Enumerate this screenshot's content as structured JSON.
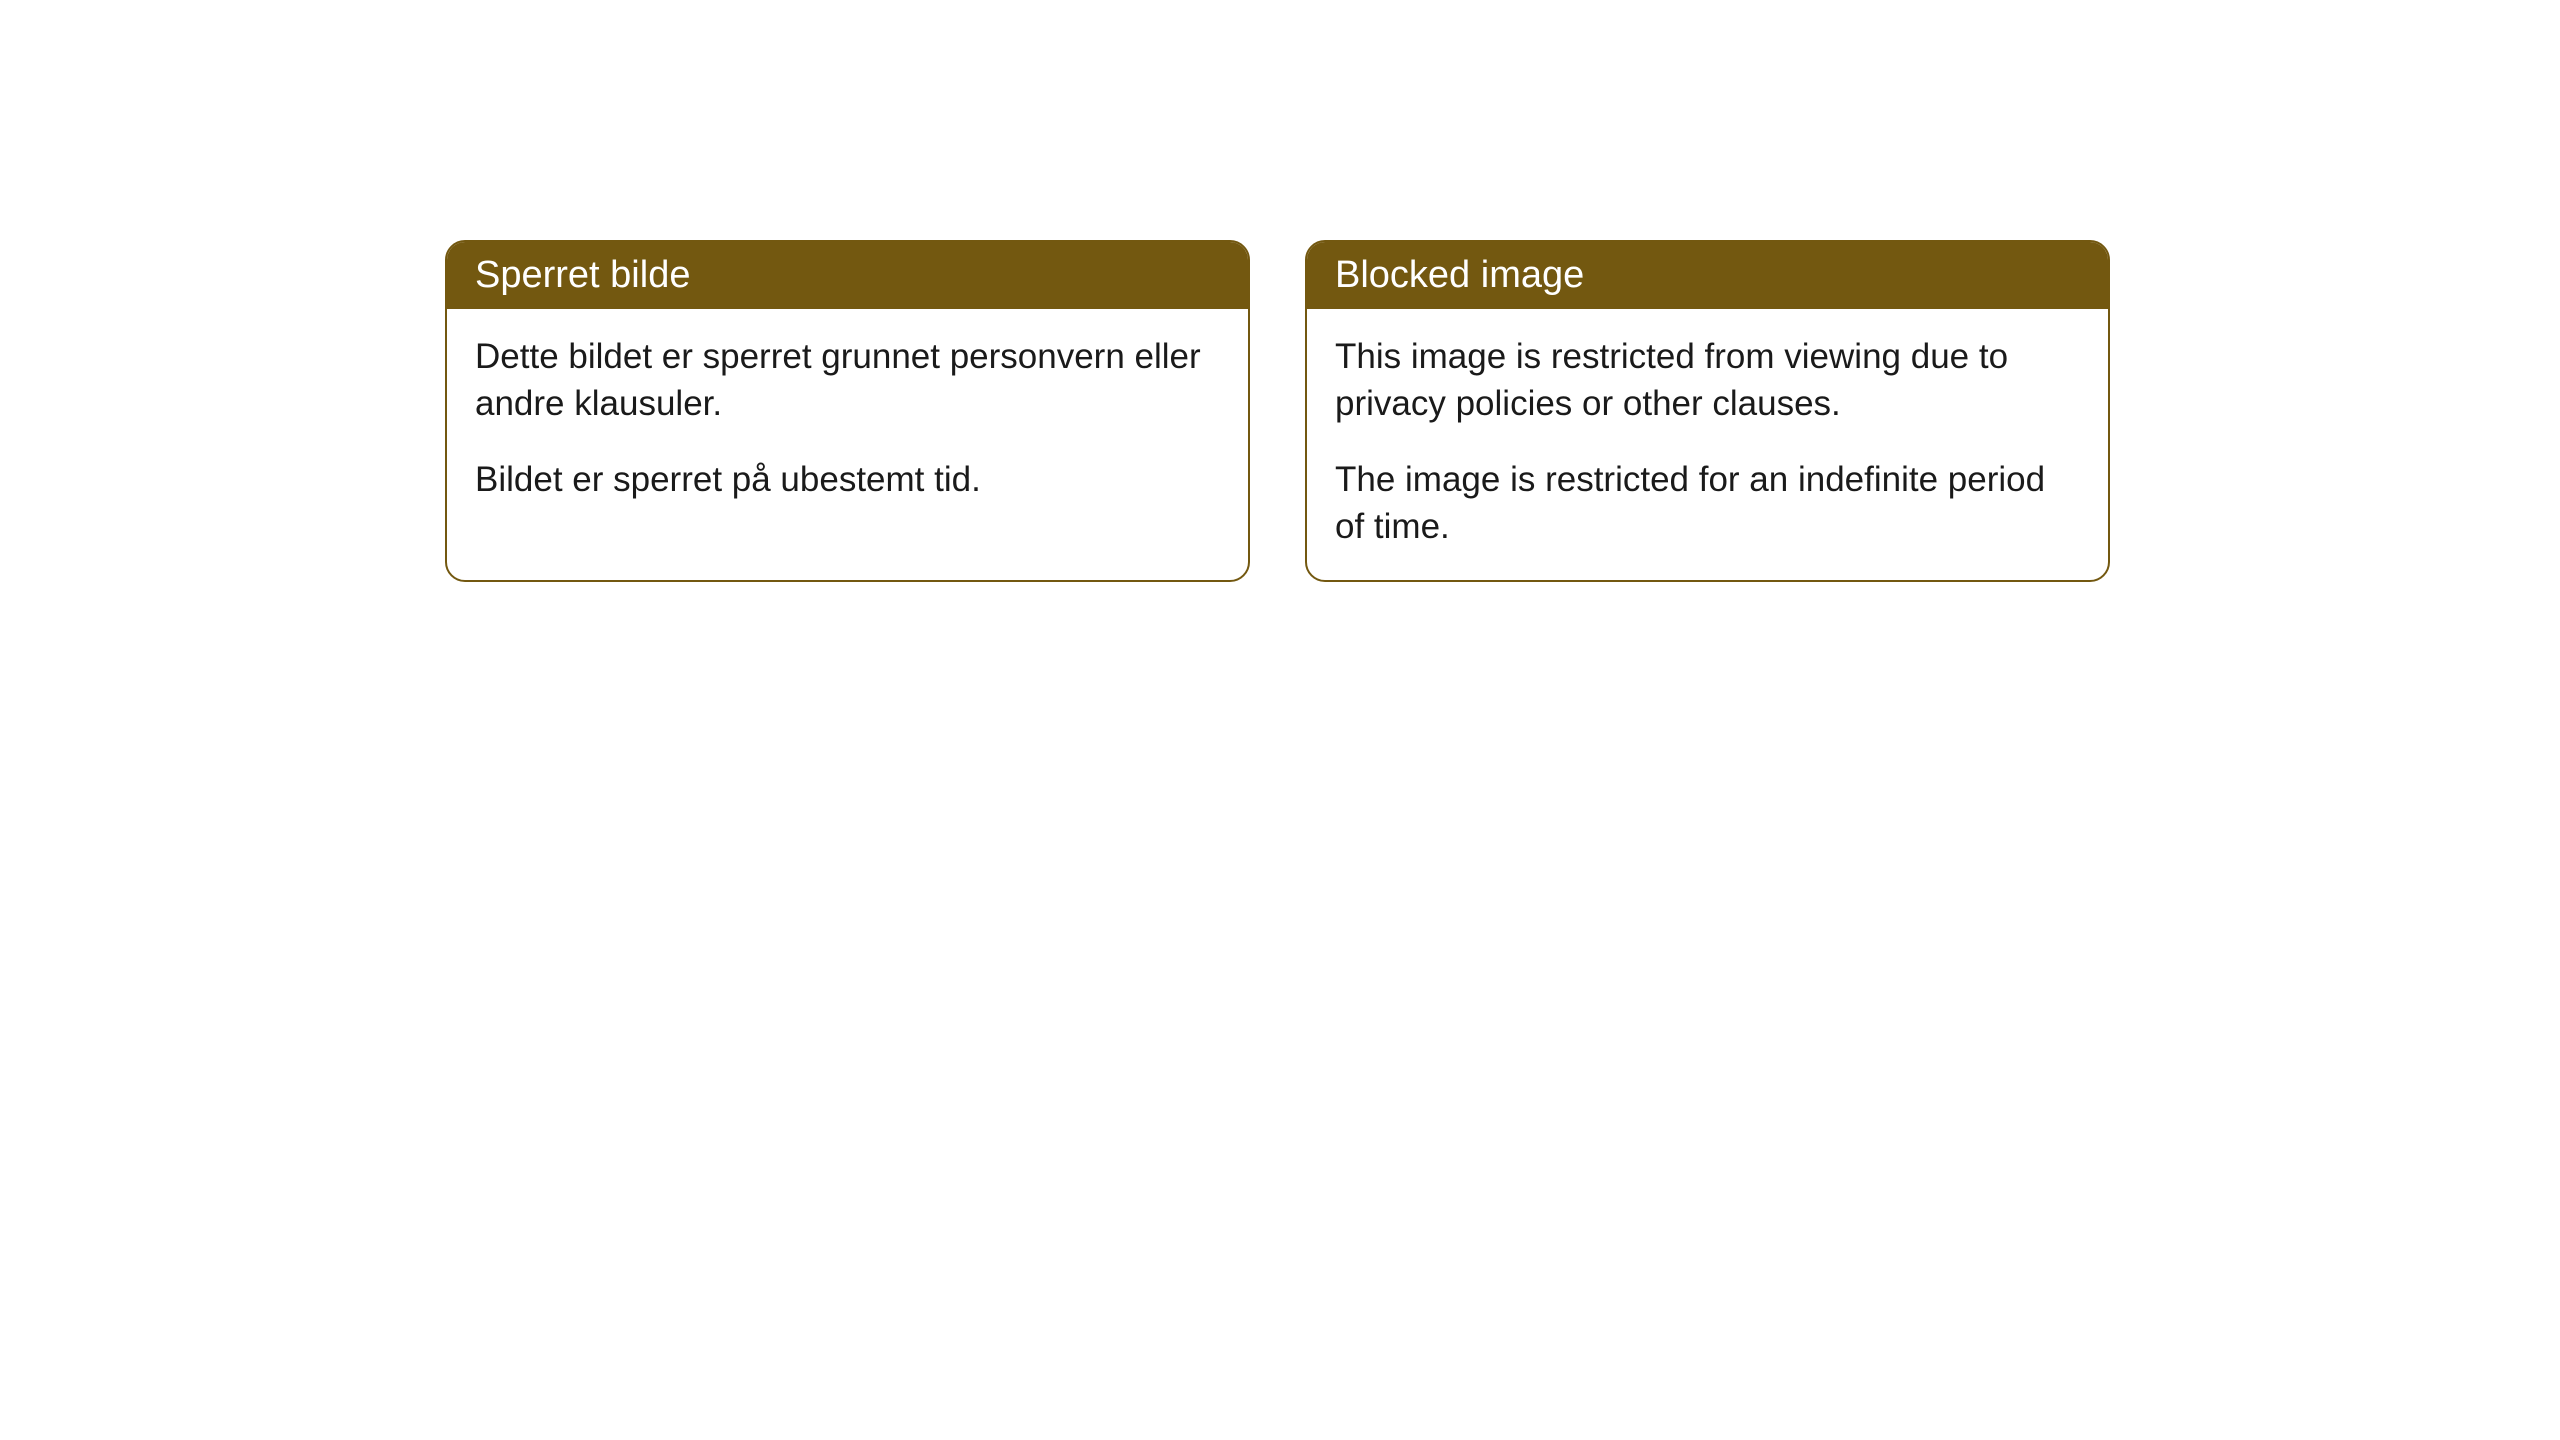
{
  "cards": [
    {
      "title": "Sperret bilde",
      "paragraph1": "Dette bildet er sperret grunnet personvern eller andre klausuler.",
      "paragraph2": "Bildet er sperret på ubestemt tid."
    },
    {
      "title": "Blocked image",
      "paragraph1": "This image is restricted from viewing due to privacy policies or other clauses.",
      "paragraph2": "The image is restricted for an indefinite period of time."
    }
  ],
  "style": {
    "header_background": "#735810",
    "header_text_color": "#ffffff",
    "border_color": "#735810",
    "body_background": "#ffffff",
    "body_text_color": "#1a1a1a",
    "border_radius": 20,
    "header_fontsize": 38,
    "body_fontsize": 35
  }
}
